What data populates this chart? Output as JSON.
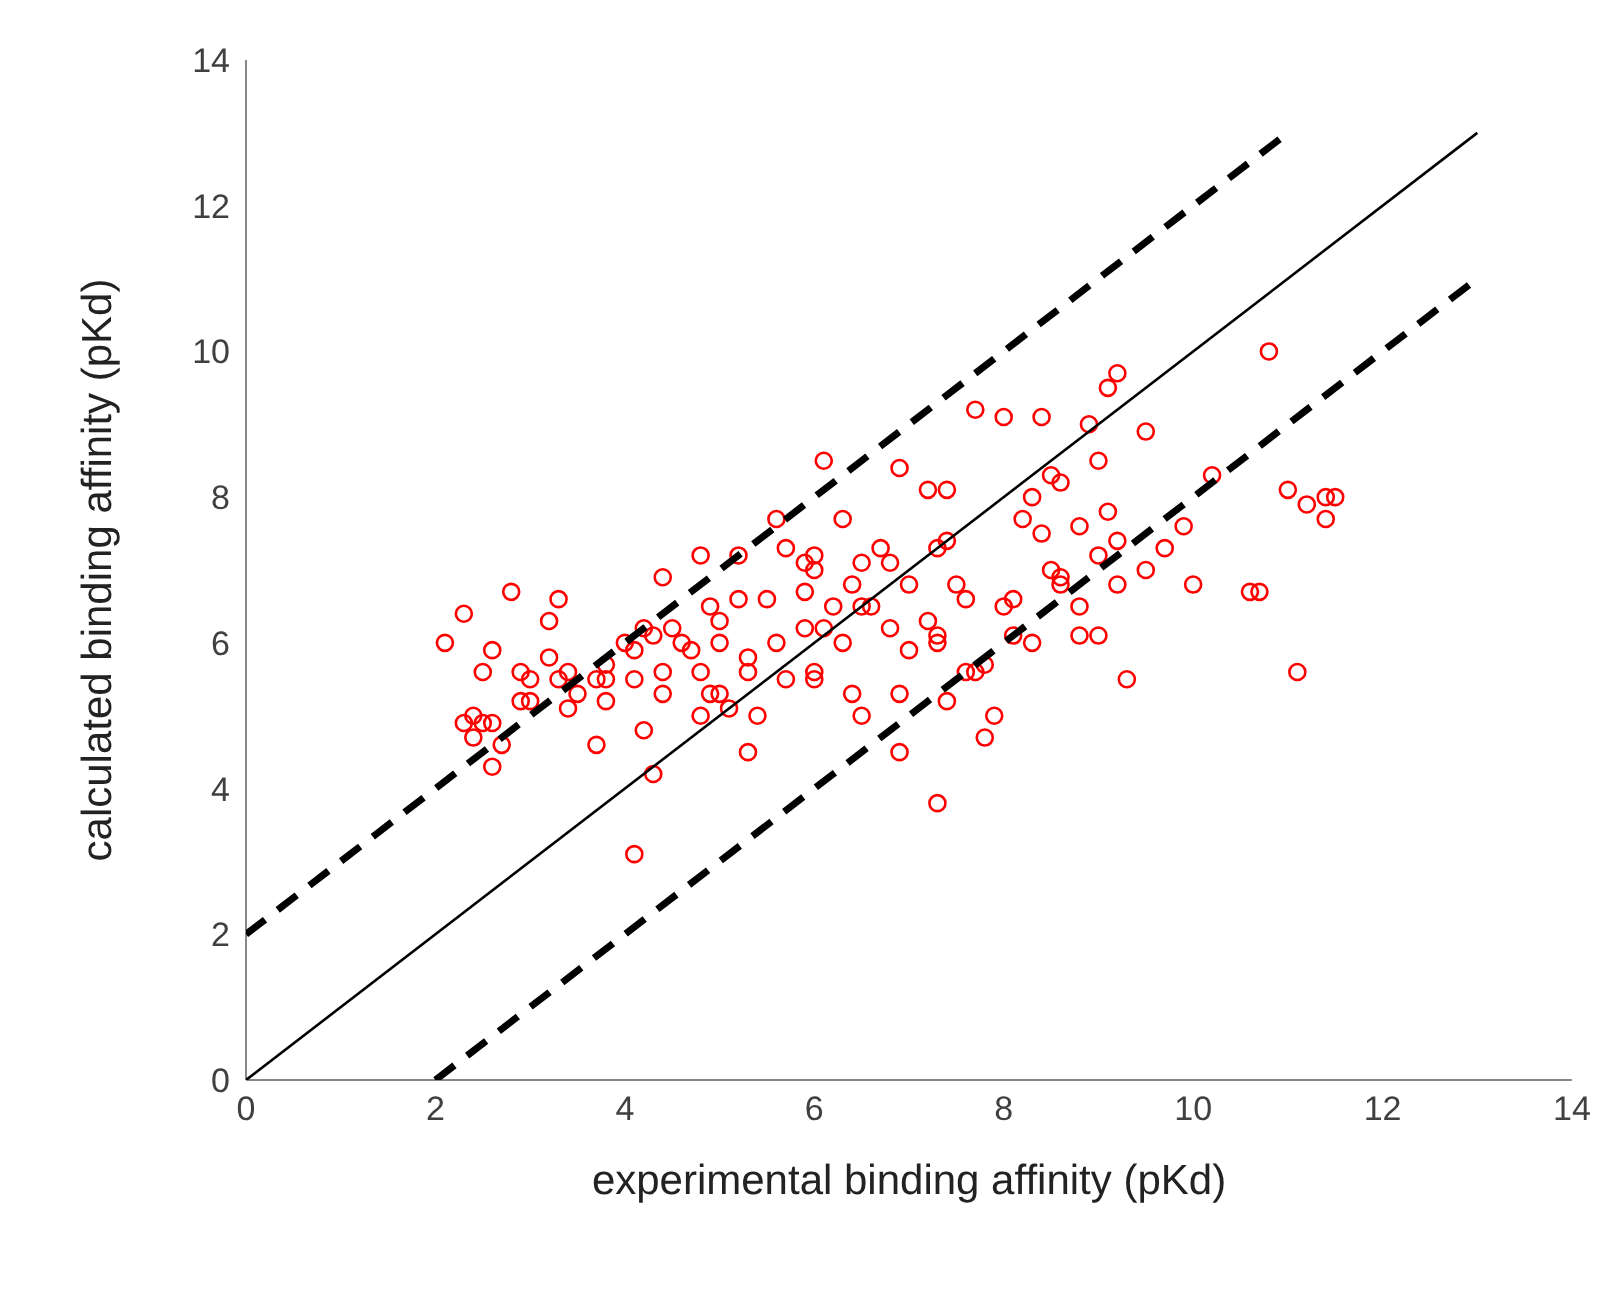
{
  "chart_data": {
    "type": "scatter",
    "xlabel": "experimental binding affinity (pKd)",
    "ylabel": "calculated binding affinity (pKd)",
    "xlim": [
      0,
      14
    ],
    "ylim": [
      0,
      14
    ],
    "xticks": [
      0,
      2,
      4,
      6,
      8,
      10,
      12,
      14
    ],
    "yticks": [
      0,
      2,
      4,
      6,
      8,
      10,
      12,
      14
    ],
    "grid": false,
    "marker": "circle",
    "series": [
      {
        "type": "scatter",
        "color": "#ff0000",
        "x": [
          2.1,
          2.3,
          2.3,
          2.4,
          2.4,
          2.5,
          2.5,
          2.6,
          2.6,
          2.6,
          2.7,
          2.8,
          2.9,
          2.9,
          3.0,
          3.0,
          3.2,
          3.2,
          3.3,
          3.3,
          3.4,
          3.4,
          3.5,
          3.7,
          3.7,
          3.8,
          3.8,
          3.8,
          4.0,
          4.1,
          4.1,
          4.1,
          4.2,
          4.2,
          4.3,
          4.3,
          4.4,
          4.4,
          4.4,
          4.5,
          4.6,
          4.7,
          4.8,
          4.8,
          4.8,
          4.9,
          4.9,
          5.0,
          5.0,
          5.0,
          5.1,
          5.2,
          5.2,
          5.3,
          5.3,
          5.3,
          5.4,
          5.5,
          5.6,
          5.6,
          5.7,
          5.7,
          5.9,
          5.9,
          5.9,
          6.0,
          6.0,
          6.0,
          6.0,
          6.1,
          6.1,
          6.2,
          6.3,
          6.3,
          6.4,
          6.4,
          6.5,
          6.5,
          6.5,
          6.6,
          6.7,
          6.8,
          6.8,
          6.9,
          6.9,
          6.9,
          7.0,
          7.0,
          7.2,
          7.2,
          7.3,
          7.3,
          7.3,
          7.3,
          7.4,
          7.4,
          7.4,
          7.5,
          7.6,
          7.6,
          7.7,
          7.7,
          7.8,
          7.8,
          7.9,
          8.0,
          8.0,
          8.1,
          8.1,
          8.2,
          8.3,
          8.3,
          8.4,
          8.4,
          8.5,
          8.5,
          8.6,
          8.6,
          8.6,
          8.8,
          8.8,
          8.8,
          8.9,
          9.0,
          9.0,
          9.0,
          9.1,
          9.1,
          9.2,
          9.2,
          9.2,
          9.3,
          9.5,
          9.5,
          9.7,
          9.9,
          10.0,
          10.2,
          10.6,
          10.7,
          10.8,
          11.0,
          11.1,
          11.2,
          11.4,
          11.4,
          11.5
        ],
        "values": [
          6.0,
          6.4,
          4.9,
          4.7,
          5.0,
          4.9,
          5.6,
          5.9,
          4.3,
          4.9,
          4.6,
          6.7,
          5.2,
          5.6,
          5.2,
          5.5,
          5.8,
          6.3,
          5.5,
          6.6,
          5.6,
          5.1,
          5.3,
          5.5,
          4.6,
          5.5,
          5.2,
          5.7,
          6.0,
          5.9,
          3.1,
          5.5,
          6.2,
          4.8,
          4.2,
          6.1,
          6.9,
          5.6,
          5.3,
          6.2,
          6.0,
          5.9,
          7.2,
          5.6,
          5.0,
          6.5,
          5.3,
          6.3,
          5.3,
          6.0,
          5.1,
          6.6,
          7.2,
          5.8,
          5.6,
          4.5,
          5.0,
          6.6,
          6.0,
          7.7,
          7.3,
          5.5,
          6.7,
          6.2,
          7.1,
          7.2,
          5.6,
          5.5,
          7.0,
          8.5,
          6.2,
          6.5,
          7.7,
          6.0,
          6.8,
          5.3,
          5.0,
          6.5,
          7.1,
          6.5,
          7.3,
          7.1,
          6.2,
          5.3,
          4.5,
          8.4,
          6.8,
          5.9,
          8.1,
          6.3,
          7.3,
          6.1,
          6.0,
          3.8,
          8.1,
          5.2,
          7.4,
          6.8,
          5.6,
          6.6,
          9.2,
          5.6,
          5.7,
          4.7,
          5.0,
          6.5,
          9.1,
          6.6,
          6.1,
          7.7,
          8.0,
          6.0,
          7.5,
          9.1,
          8.3,
          7.0,
          6.8,
          6.9,
          8.2,
          7.6,
          6.5,
          6.1,
          9.0,
          7.2,
          6.1,
          8.5,
          9.5,
          7.8,
          7.4,
          9.7,
          6.8,
          5.5,
          8.9,
          7.0,
          7.3,
          7.6,
          6.8,
          8.3,
          6.7,
          6.7,
          10.0,
          8.1,
          5.6,
          7.9,
          8.0,
          7.7,
          8.0
        ]
      },
      {
        "type": "line",
        "color": "#000000",
        "line_style": "solid",
        "marker": "none",
        "x": [
          0,
          13
        ],
        "values": [
          0,
          13
        ]
      },
      {
        "type": "line",
        "color": "#000000",
        "line_style": "dashed",
        "marker": "none",
        "x": [
          0,
          11
        ],
        "values": [
          2,
          13
        ]
      },
      {
        "type": "line",
        "color": "#000000",
        "line_style": "dashed",
        "marker": "none",
        "x": [
          2,
          13
        ],
        "values": [
          0,
          11
        ]
      }
    ]
  }
}
